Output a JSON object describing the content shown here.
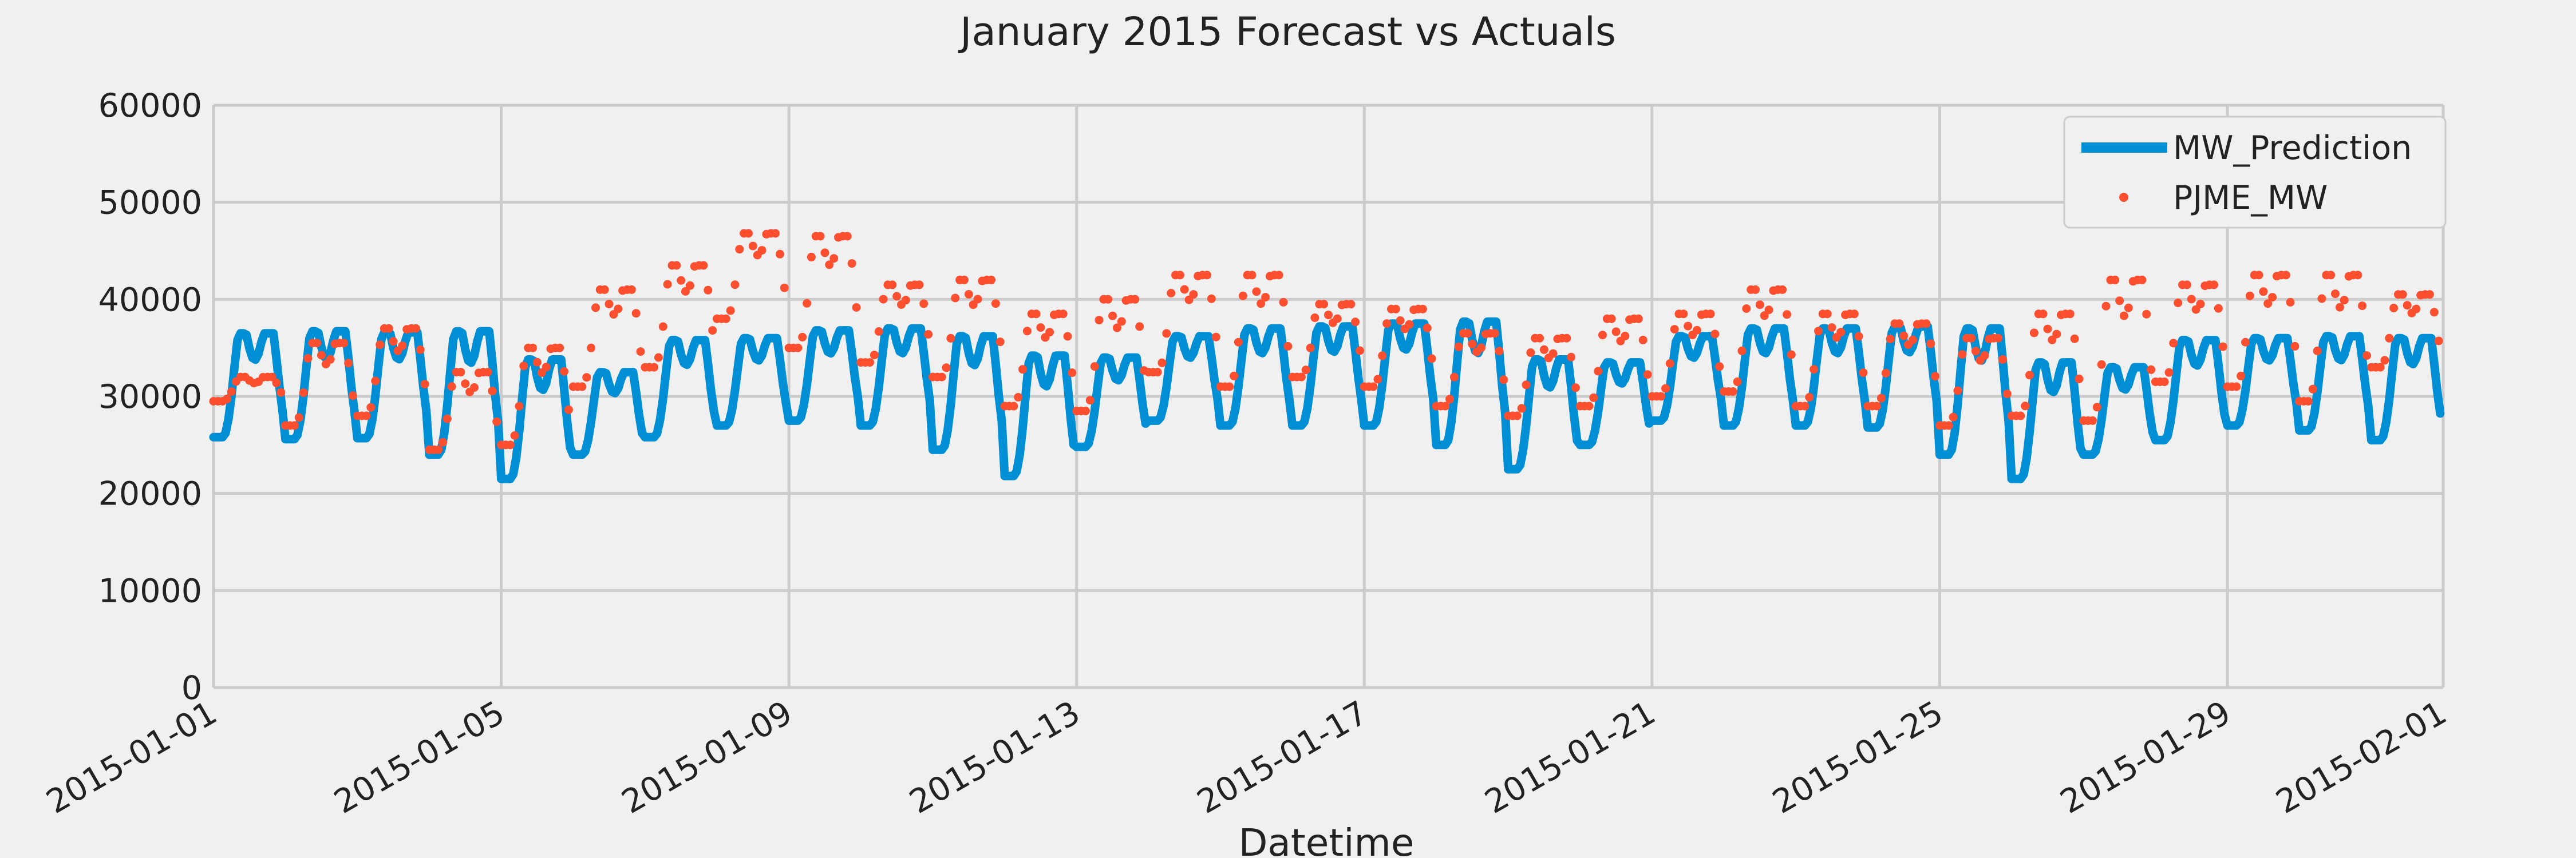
{
  "chart_data": {
    "type": "line",
    "title": "January 2015 Forecast vs Actuals",
    "xlabel": "Datetime",
    "ylabel": "",
    "xlim": [
      "2015-01-01",
      "2015-02-01"
    ],
    "ylim": [
      0,
      60000
    ],
    "yticks": [
      0,
      10000,
      20000,
      30000,
      40000,
      50000,
      60000
    ],
    "xticks": [
      "2015-01-01",
      "2015-01-05",
      "2015-01-09",
      "2015-01-13",
      "2015-01-17",
      "2015-01-21",
      "2015-01-25",
      "2015-01-29",
      "2015-02-01"
    ],
    "grid": true,
    "legend_position": "top-right",
    "colors": {
      "prediction": "#008fd5",
      "actual": "#fc4f30",
      "background": "#f0f0f0",
      "grid": "#cbcbcb"
    },
    "series": [
      {
        "name": "MW_Prediction",
        "style": "line",
        "x": [
          "2015-01-01",
          "2015-01-02",
          "2015-01-03",
          "2015-01-04",
          "2015-01-05",
          "2015-01-06",
          "2015-01-07",
          "2015-01-08",
          "2015-01-09",
          "2015-01-10",
          "2015-01-11",
          "2015-01-12",
          "2015-01-13",
          "2015-01-14",
          "2015-01-15",
          "2015-01-16",
          "2015-01-17",
          "2015-01-18",
          "2015-01-19",
          "2015-01-20",
          "2015-01-21",
          "2015-01-22",
          "2015-01-23",
          "2015-01-24",
          "2015-01-25",
          "2015-01-26",
          "2015-01-27",
          "2015-01-28",
          "2015-01-29",
          "2015-01-30",
          "2015-01-31"
        ],
        "min": [
          25800,
          25600,
          25700,
          24000,
          21500,
          24000,
          25800,
          27000,
          27500,
          27000,
          24500,
          21800,
          24800,
          27500,
          27000,
          27000,
          27000,
          25000,
          22500,
          25000,
          27500,
          27000,
          27000,
          26800,
          24000,
          21500,
          24000,
          25500,
          27000,
          26500,
          25500
        ],
        "max": [
          36500,
          36700,
          36600,
          36700,
          33800,
          32500,
          35800,
          36000,
          36800,
          37000,
          36200,
          34200,
          34000,
          36200,
          37000,
          37200,
          37500,
          37700,
          33800,
          33500,
          36200,
          37000,
          37000,
          37200,
          37000,
          33500,
          33000,
          35800,
          36000,
          36200,
          36000
        ]
      },
      {
        "name": "PJME_MW",
        "style": "markers",
        "x": [
          "2015-01-01",
          "2015-01-02",
          "2015-01-03",
          "2015-01-04",
          "2015-01-05",
          "2015-01-06",
          "2015-01-07",
          "2015-01-08",
          "2015-01-09",
          "2015-01-10",
          "2015-01-11",
          "2015-01-12",
          "2015-01-13",
          "2015-01-14",
          "2015-01-15",
          "2015-01-16",
          "2015-01-17",
          "2015-01-18",
          "2015-01-19",
          "2015-01-20",
          "2015-01-21",
          "2015-01-22",
          "2015-01-23",
          "2015-01-24",
          "2015-01-25",
          "2015-01-26",
          "2015-01-27",
          "2015-01-28",
          "2015-01-29",
          "2015-01-30",
          "2015-01-31"
        ],
        "min": [
          29500,
          27000,
          28000,
          24500,
          25000,
          31000,
          33000,
          38000,
          35000,
          33500,
          32000,
          29000,
          28500,
          32500,
          31000,
          32000,
          31000,
          29000,
          28000,
          29000,
          30000,
          30500,
          29000,
          29000,
          27000,
          28000,
          27500,
          31500,
          31000,
          29500,
          33000
        ],
        "max": [
          32000,
          35500,
          37000,
          32500,
          35000,
          41000,
          43500,
          46800,
          46500,
          41500,
          42000,
          38500,
          40000,
          42500,
          42500,
          39500,
          39000,
          36500,
          36000,
          38000,
          38500,
          41000,
          38500,
          37500,
          36000,
          38500,
          42000,
          41500,
          42500,
          42500,
          40500
        ]
      }
    ]
  }
}
